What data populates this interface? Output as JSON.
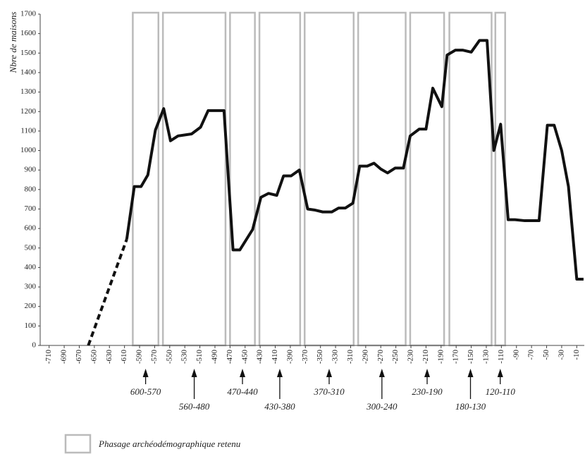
{
  "chart_data": {
    "type": "line",
    "ylabel": "Nbre de maisons",
    "xlim": [
      -720,
      0
    ],
    "ylim": [
      0,
      1700
    ],
    "xticks": [
      -710,
      -690,
      -670,
      -650,
      -630,
      -610,
      -590,
      -570,
      -550,
      -530,
      -510,
      -490,
      -470,
      -450,
      -430,
      -410,
      -390,
      -370,
      -350,
      -330,
      -310,
      -290,
      -270,
      -250,
      -230,
      -210,
      -190,
      -170,
      -150,
      -130,
      -110,
      -90,
      -70,
      -50,
      -30,
      -10
    ],
    "yticks": [
      0,
      100,
      200,
      300,
      400,
      500,
      600,
      700,
      800,
      900,
      1000,
      1100,
      1200,
      1300,
      1400,
      1500,
      1600,
      1700
    ],
    "series": [
      {
        "color": "#111111",
        "dashed": true,
        "x": [
          -658,
          -607
        ],
        "values": [
          0,
          545
        ]
      },
      {
        "color": "#111111",
        "dashed": false,
        "x": [
          -607,
          -597,
          -588,
          -579,
          -569,
          -558,
          -549,
          -539,
          -521,
          -509,
          -499,
          -478,
          -466,
          -457,
          -440,
          -429,
          -419,
          -408,
          -399,
          -389,
          -378,
          -367,
          -358,
          -347,
          -335,
          -326,
          -317,
          -307,
          -298,
          -288,
          -279,
          -270,
          -261,
          -251,
          -240,
          -231,
          -219,
          -210,
          -201,
          -189,
          -182,
          -171,
          -161,
          -150,
          -139,
          -129,
          -120,
          -111,
          -101,
          -92,
          -79,
          -60,
          -49,
          -40,
          -30,
          -21,
          -10,
          -1
        ],
        "values": [
          545,
          815,
          815,
          875,
          1105,
          1215,
          1050,
          1075,
          1085,
          1120,
          1205,
          1205,
          490,
          490,
          595,
          760,
          780,
          770,
          870,
          870,
          900,
          700,
          695,
          685,
          685,
          705,
          705,
          730,
          920,
          920,
          935,
          905,
          885,
          910,
          910,
          1075,
          1110,
          1110,
          1320,
          1225,
          1490,
          1515,
          1515,
          1505,
          1565,
          1565,
          1000,
          1135,
          645,
          645,
          640,
          640,
          1130,
          1130,
          1000,
          815,
          340,
          340
        ]
      }
    ],
    "phase_color": "#bbbbbb",
    "phases": [
      {
        "label": "600-570",
        "start": -599,
        "end": -565
      },
      {
        "label": "560-480",
        "start": -559,
        "end": -476
      },
      {
        "label": "470-440",
        "start": -470,
        "end": -437
      },
      {
        "label": "430-380",
        "start": -431,
        "end": -377
      },
      {
        "label": "370-310",
        "start": -371,
        "end": -306
      },
      {
        "label": "300-240",
        "start": -300,
        "end": -237
      },
      {
        "label": "230-190",
        "start": -231,
        "end": -186
      },
      {
        "label": "180-130",
        "start": -179,
        "end": -123
      },
      {
        "label": "120-110",
        "start": -118,
        "end": -105
      }
    ],
    "legend": "Phasage archéodémographique retenu"
  }
}
